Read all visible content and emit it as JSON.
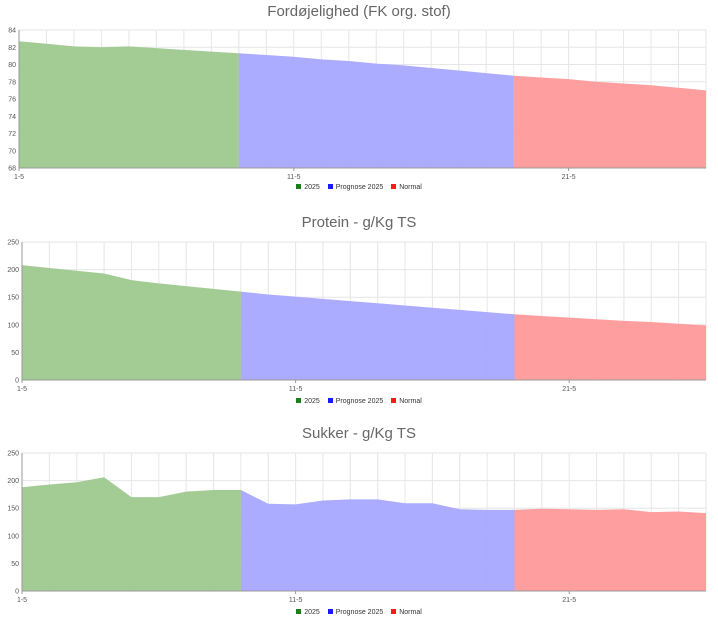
{
  "x_tick_labels": [
    "1-5",
    "11-5",
    "21-5"
  ],
  "legend": [
    {
      "label": "2025",
      "color": "#1a7f1a"
    },
    {
      "label": "Prognose 2025",
      "color": "#1a1aff"
    },
    {
      "label": "Normal",
      "color": "#ff1a1a"
    }
  ],
  "series_colors": {
    "actual": "#9ec98f",
    "prognose": "#a6a6ff",
    "normal": "#ff9999",
    "grid": "#e6e6e6",
    "axis": "#999999"
  },
  "chart_data": [
    {
      "type": "area",
      "title": "Fordøjelighed (FK org. stof)",
      "xlabel": "",
      "ylabel": "",
      "ylim": [
        68,
        84
      ],
      "yticks": [
        68,
        70,
        72,
        74,
        76,
        78,
        80,
        82,
        84
      ],
      "x_start_day": 1,
      "x_end_day": 26,
      "series": [
        {
          "name": "2025",
          "key": "actual",
          "x": [
            1,
            2,
            3,
            4,
            5,
            6,
            7,
            8,
            9
          ],
          "values": [
            82.7,
            82.4,
            82.1,
            82.0,
            82.1,
            81.9,
            81.7,
            81.5,
            81.3
          ]
        },
        {
          "name": "Prognose 2025",
          "key": "prognose",
          "x": [
            9,
            10,
            11,
            12,
            13,
            14,
            15,
            16,
            17,
            18,
            19
          ],
          "values": [
            81.3,
            81.1,
            80.9,
            80.6,
            80.4,
            80.1,
            79.9,
            79.6,
            79.3,
            79.0,
            78.7
          ]
        },
        {
          "name": "Normal",
          "key": "normal",
          "x": [
            19,
            20,
            21,
            22,
            23,
            24,
            25,
            26
          ],
          "values": [
            78.7,
            78.5,
            78.3,
            78.0,
            77.8,
            77.6,
            77.3,
            77.0
          ]
        }
      ]
    },
    {
      "type": "area",
      "title": "Protein - g/Kg TS",
      "xlabel": "",
      "ylabel": "",
      "ylim": [
        0,
        250
      ],
      "yticks": [
        0,
        50,
        100,
        150,
        200,
        250
      ],
      "x_start_day": 1,
      "x_end_day": 26,
      "series": [
        {
          "name": "2025",
          "key": "actual",
          "x": [
            1,
            2,
            3,
            4,
            5,
            6,
            7,
            8,
            9
          ],
          "values": [
            208,
            203,
            198,
            193,
            181,
            175,
            170,
            165,
            160
          ]
        },
        {
          "name": "Prognose 2025",
          "key": "prognose",
          "x": [
            9,
            10,
            11,
            12,
            13,
            14,
            15,
            16,
            17,
            18,
            19
          ],
          "values": [
            160,
            155,
            151,
            147,
            143,
            139,
            135,
            131,
            127,
            123,
            119
          ]
        },
        {
          "name": "Normal",
          "key": "normal",
          "x": [
            19,
            20,
            21,
            22,
            23,
            24,
            25,
            26
          ],
          "values": [
            119,
            116,
            113,
            110,
            107,
            105,
            102,
            99
          ]
        }
      ]
    },
    {
      "type": "area",
      "title": "Sukker - g/Kg TS",
      "xlabel": "",
      "ylabel": "",
      "ylim": [
        0,
        250
      ],
      "yticks": [
        0,
        50,
        100,
        150,
        200,
        250
      ],
      "x_start_day": 1,
      "x_end_day": 26,
      "series": [
        {
          "name": "2025",
          "key": "actual",
          "x": [
            1,
            2,
            3,
            4,
            5,
            6,
            7,
            8,
            9
          ],
          "values": [
            188,
            193,
            197,
            206,
            170,
            170,
            180,
            183,
            183
          ]
        },
        {
          "name": "Prognose 2025",
          "key": "prognose",
          "x": [
            9,
            10,
            11,
            12,
            13,
            14,
            15,
            16,
            17,
            18,
            19
          ],
          "values": [
            183,
            158,
            157,
            164,
            166,
            166,
            159,
            159,
            148,
            147,
            147
          ]
        },
        {
          "name": "Normal",
          "key": "normal",
          "x": [
            19,
            20,
            21,
            22,
            23,
            24,
            25,
            26
          ],
          "values": [
            147,
            149,
            148,
            147,
            148,
            143,
            144,
            141
          ]
        }
      ]
    }
  ]
}
